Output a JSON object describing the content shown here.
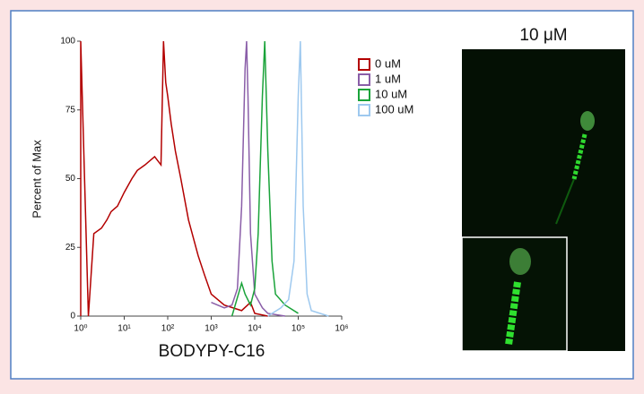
{
  "chart_data": {
    "type": "line",
    "xscale": "log",
    "xlabel": "BODYPY-C16",
    "ylabel": "Percent of Max",
    "xlim": [
      1,
      1000000
    ],
    "ylim": [
      0,
      100
    ],
    "xticks": [
      {
        "value": 1,
        "label": "10⁰"
      },
      {
        "value": 10,
        "label": "10¹"
      },
      {
        "value": 100,
        "label": "10²"
      },
      {
        "value": 1000,
        "label": "10³"
      },
      {
        "value": 10000,
        "label": "10⁴"
      },
      {
        "value": 100000,
        "label": "10⁵"
      },
      {
        "value": 1000000,
        "label": "10⁶"
      }
    ],
    "yticks": [
      0,
      25,
      50,
      75,
      100
    ],
    "legend": "right",
    "series": [
      {
        "name": "0 uM",
        "color": "#b30000",
        "x": [
          1,
          1,
          1.5,
          2,
          3,
          4,
          5,
          7,
          10,
          15,
          20,
          30,
          50,
          70,
          80,
          90,
          100,
          120,
          150,
          200,
          300,
          500,
          700,
          1000,
          2000,
          5000,
          8000,
          10000,
          20000
        ],
        "values": [
          0,
          100,
          0,
          30,
          32,
          35,
          38,
          40,
          45,
          50,
          53,
          55,
          58,
          55,
          100,
          85,
          80,
          70,
          60,
          50,
          35,
          22,
          15,
          8,
          4,
          2,
          5,
          1,
          0
        ]
      },
      {
        "name": "1 uM",
        "color": "#8a5ea8",
        "x": [
          1000,
          2000,
          3000,
          4000,
          5000,
          6000,
          6500,
          7000,
          8000,
          10000,
          15000,
          20000,
          50000
        ],
        "values": [
          5,
          3,
          4,
          10,
          40,
          90,
          100,
          80,
          30,
          8,
          3,
          1,
          0
        ]
      },
      {
        "name": "10 uM",
        "color": "#1aa33a",
        "x": [
          3000,
          5000,
          6000,
          8000,
          10000,
          12000,
          15000,
          17000,
          20000,
          25000,
          30000,
          50000,
          100000
        ],
        "values": [
          0,
          12,
          8,
          4,
          10,
          30,
          80,
          100,
          60,
          20,
          8,
          4,
          1
        ]
      },
      {
        "name": "100 uM",
        "color": "#9ec9ef",
        "x": [
          20000,
          40000,
          60000,
          80000,
          100000,
          112000,
          130000,
          160000,
          200000,
          500000
        ],
        "values": [
          0,
          3,
          6,
          20,
          80,
          100,
          40,
          8,
          2,
          0
        ]
      }
    ]
  },
  "image_panel": {
    "title": "10 μM"
  }
}
